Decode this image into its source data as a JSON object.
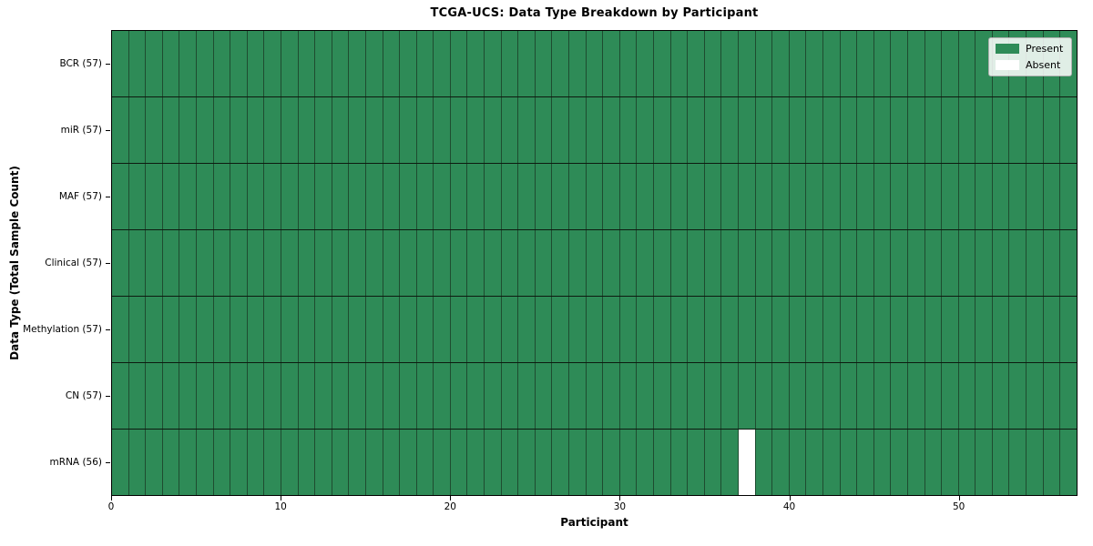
{
  "chart_data": {
    "type": "heatmap",
    "title": "TCGA-UCS: Data Type Breakdown by Participant",
    "xlabel": "Participant",
    "ylabel": "Data Type (Total Sample Count)",
    "n_participants": 57,
    "x_ticks": [
      0,
      10,
      20,
      30,
      40,
      50
    ],
    "rows": [
      {
        "label": "BCR (57)",
        "data_type": "BCR",
        "present_count": 57,
        "absent_participants": []
      },
      {
        "label": "miR (57)",
        "data_type": "miR",
        "present_count": 57,
        "absent_participants": []
      },
      {
        "label": "MAF (57)",
        "data_type": "MAF",
        "present_count": 57,
        "absent_participants": []
      },
      {
        "label": "Clinical (57)",
        "data_type": "Clinical",
        "present_count": 57,
        "absent_participants": []
      },
      {
        "label": "Methylation (57)",
        "data_type": "Methylation",
        "present_count": 57,
        "absent_participants": []
      },
      {
        "label": "CN (57)",
        "data_type": "CN",
        "present_count": 57,
        "absent_participants": []
      },
      {
        "label": "mRNA (56)",
        "data_type": "mRNA",
        "present_count": 56,
        "absent_participants": [
          37
        ]
      }
    ],
    "legend": [
      {
        "label": "Present",
        "color": "#2e8b57"
      },
      {
        "label": "Absent",
        "color": "#ffffff"
      }
    ],
    "colors": {
      "present": "#2e8b57",
      "absent": "#ffffff"
    },
    "legend_position": "upper right",
    "grid": true
  }
}
